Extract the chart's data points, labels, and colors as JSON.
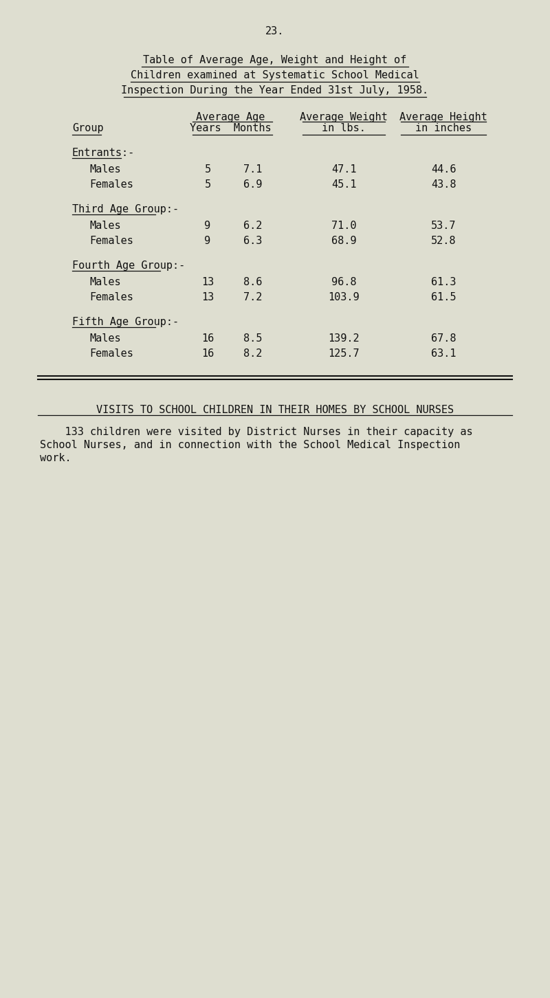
{
  "page_number": "23.",
  "title_lines": [
    "Table of Average Age, Weight and Height of",
    "Children examined at Systematic School Medical",
    "Inspection During the Year Ended 31st July, 1958."
  ],
  "group_col_header": "Group",
  "groups": [
    {
      "label": "Entrants:-",
      "rows": [
        {
          "name": "Males",
          "years": "5",
          "months": "7.1",
          "weight": "47.1",
          "height": "44.6"
        },
        {
          "name": "Females",
          "years": "5",
          "months": "6.9",
          "weight": "45.1",
          "height": "43.8"
        }
      ]
    },
    {
      "label": "Third Age Group:-",
      "rows": [
        {
          "name": "Males",
          "years": "9",
          "months": "6.2",
          "weight": "71.0",
          "height": "53.7"
        },
        {
          "name": "Females",
          "years": "9",
          "months": "6.3",
          "weight": "68.9",
          "height": "52.8"
        }
      ]
    },
    {
      "label": "Fourth Age Group:-",
      "rows": [
        {
          "name": "Males",
          "years": "13",
          "months": "8.6",
          "weight": "96.8",
          "height": "61.3"
        },
        {
          "name": "Females",
          "years": "13",
          "months": "7.2",
          "weight": "103.9",
          "height": "61.5"
        }
      ]
    },
    {
      "label": "Fifth Age Group:-",
      "rows": [
        {
          "name": "Males",
          "years": "16",
          "months": "8.5",
          "weight": "139.2",
          "height": "67.8"
        },
        {
          "name": "Females",
          "years": "16",
          "months": "8.2",
          "weight": "125.7",
          "height": "63.1"
        }
      ]
    }
  ],
  "section2_title": "VISITS TO SCHOOL CHILDREN IN THEIR HOMES BY SCHOOL NURSES",
  "section2_body_lines": [
    "    133 children were visited by District Nurses in their capacity as",
    "School Nurses, and in connection with the School Medical Inspection",
    "work."
  ],
  "bg_color": "#deded0",
  "text_color": "#111111",
  "font_size": 11,
  "title_font_size": 11
}
